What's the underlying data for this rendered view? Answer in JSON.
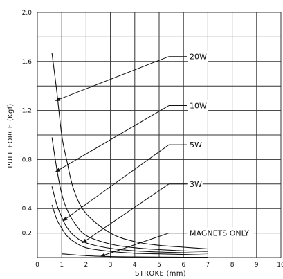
{
  "chart_data": {
    "type": "line",
    "xlabel": "STROKE (mm)",
    "ylabel": "PULL FORCE (Kgf)",
    "xlim": [
      0,
      10
    ],
    "ylim": [
      0,
      2.0
    ],
    "x_ticks": [
      "0",
      "1",
      "2",
      "3",
      "4",
      "5",
      "6",
      "7",
      "8",
      "9",
      "10"
    ],
    "y_ticks": [
      {
        "value": 0.2,
        "label": "0.2"
      },
      {
        "value": 0.4,
        "label": "0.4"
      },
      {
        "value": 0.8,
        "label": "0.8"
      },
      {
        "value": 1.2,
        "label": "1.2"
      },
      {
        "value": 1.6,
        "label": "1.6"
      },
      {
        "value": 2.0,
        "label": "2.0"
      }
    ],
    "grid": true,
    "colors": {
      "line": "#111111",
      "grid": "#333333",
      "background": "#ffffff"
    },
    "series": [
      {
        "name": "20W",
        "points": [
          [
            0.6,
            1.67
          ],
          [
            0.8,
            1.35
          ],
          [
            1.0,
            1.0
          ],
          [
            1.2,
            0.8
          ],
          [
            1.5,
            0.55
          ],
          [
            2.0,
            0.36
          ],
          [
            3.0,
            0.2
          ],
          [
            4.0,
            0.13
          ],
          [
            5.0,
            0.1
          ],
          [
            6.0,
            0.085
          ],
          [
            7.0,
            0.07
          ]
        ],
        "label_at": [
          1.2,
          0.82
        ],
        "pointer_to": [
          0.75,
          1.28
        ]
      },
      {
        "name": "10W",
        "points": [
          [
            0.6,
            0.98
          ],
          [
            0.8,
            0.72
          ],
          [
            1.0,
            0.52
          ],
          [
            1.2,
            0.4
          ],
          [
            1.5,
            0.29
          ],
          [
            2.0,
            0.18
          ],
          [
            3.0,
            0.11
          ],
          [
            4.0,
            0.08
          ],
          [
            5.0,
            0.065
          ],
          [
            6.0,
            0.055
          ],
          [
            7.0,
            0.05
          ]
        ],
        "label_at": [
          1.2,
          0.62
        ],
        "pointer_to": [
          0.75,
          0.7
        ]
      },
      {
        "name": "5W",
        "points": [
          [
            0.6,
            0.58
          ],
          [
            0.8,
            0.43
          ],
          [
            1.0,
            0.33
          ],
          [
            1.2,
            0.25
          ],
          [
            1.5,
            0.18
          ],
          [
            2.0,
            0.12
          ],
          [
            3.0,
            0.075
          ],
          [
            4.0,
            0.055
          ],
          [
            5.0,
            0.045
          ],
          [
            6.0,
            0.04
          ],
          [
            7.0,
            0.035
          ]
        ],
        "label_at": [
          1.2,
          0.46
        ],
        "pointer_to": [
          1.05,
          0.3
        ]
      },
      {
        "name": "3W",
        "points": [
          [
            0.6,
            0.43
          ],
          [
            0.8,
            0.31
          ],
          [
            1.0,
            0.24
          ],
          [
            1.2,
            0.18
          ],
          [
            1.5,
            0.13
          ],
          [
            2.0,
            0.08
          ],
          [
            3.0,
            0.05
          ],
          [
            4.0,
            0.035
          ],
          [
            5.0,
            0.03
          ],
          [
            6.0,
            0.025
          ],
          [
            7.0,
            0.02
          ]
        ],
        "label_at": [
          1.2,
          0.3
        ],
        "pointer_to": [
          1.85,
          0.12
        ]
      },
      {
        "name": "MAGNETS ONLY",
        "points": [
          [
            1.0,
            0.03
          ],
          [
            2.0,
            0.015
          ],
          [
            3.0,
            0.008
          ],
          [
            4.0,
            0.005
          ],
          [
            5.0,
            0.004
          ],
          [
            6.0,
            0.003
          ],
          [
            7.0,
            0.003
          ]
        ],
        "label_at": [
          1.2,
          0.1
        ],
        "pointer_to": [
          2.6,
          0.01
        ]
      }
    ]
  }
}
